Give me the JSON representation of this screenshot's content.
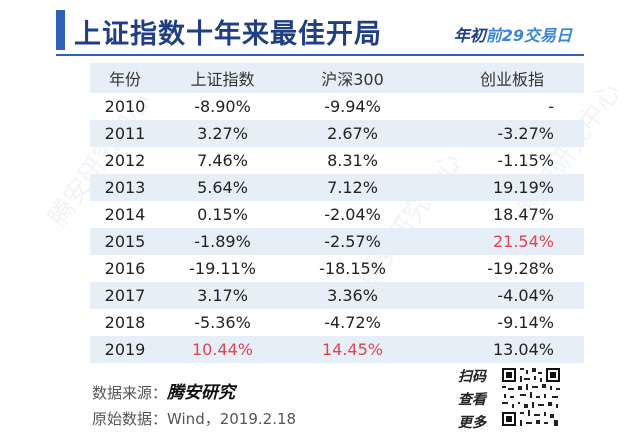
{
  "header": {
    "title": "上证指数十年来最佳开局",
    "subtitle_prefix": "年初",
    "subtitle_highlight": "前29交易日"
  },
  "table": {
    "columns": [
      "年份",
      "上证指数",
      "沪深300",
      "创业板指"
    ],
    "rows": [
      {
        "year": "2010",
        "sh": "-8.90%",
        "hs300": "-9.94%",
        "cyb": "-"
      },
      {
        "year": "2011",
        "sh": "3.27%",
        "hs300": "2.67%",
        "cyb": "-3.27%"
      },
      {
        "year": "2012",
        "sh": "7.46%",
        "hs300": "8.31%",
        "cyb": "-1.15%"
      },
      {
        "year": "2013",
        "sh": "5.64%",
        "hs300": "7.12%",
        "cyb": "19.19%"
      },
      {
        "year": "2014",
        "sh": "0.15%",
        "hs300": "-2.04%",
        "cyb": "18.47%"
      },
      {
        "year": "2015",
        "sh": "-1.89%",
        "hs300": "-2.57%",
        "cyb": "21.54%"
      },
      {
        "year": "2016",
        "sh": "-19.11%",
        "hs300": "-18.15%",
        "cyb": "-19.28%"
      },
      {
        "year": "2017",
        "sh": "3.17%",
        "hs300": "3.36%",
        "cyb": "-4.04%"
      },
      {
        "year": "2018",
        "sh": "-5.36%",
        "hs300": "-4.72%",
        "cyb": "-9.14%"
      },
      {
        "year": "2019",
        "sh": "10.44%",
        "hs300": "14.45%",
        "cyb": "13.04%"
      }
    ],
    "highlight_color": "#e0444f"
  },
  "footer": {
    "source_label": "数据来源：",
    "source_brand": "腾安研究",
    "original_label": "原始数据：",
    "original_value": "Wind，2019.2.18",
    "scan_lines": [
      "扫码",
      "查看",
      "更多"
    ]
  },
  "watermark": "腾安研究中心",
  "colors": {
    "accent": "#2f63b8",
    "title": "#1f3e84",
    "row_alt": "#e6eef7"
  }
}
